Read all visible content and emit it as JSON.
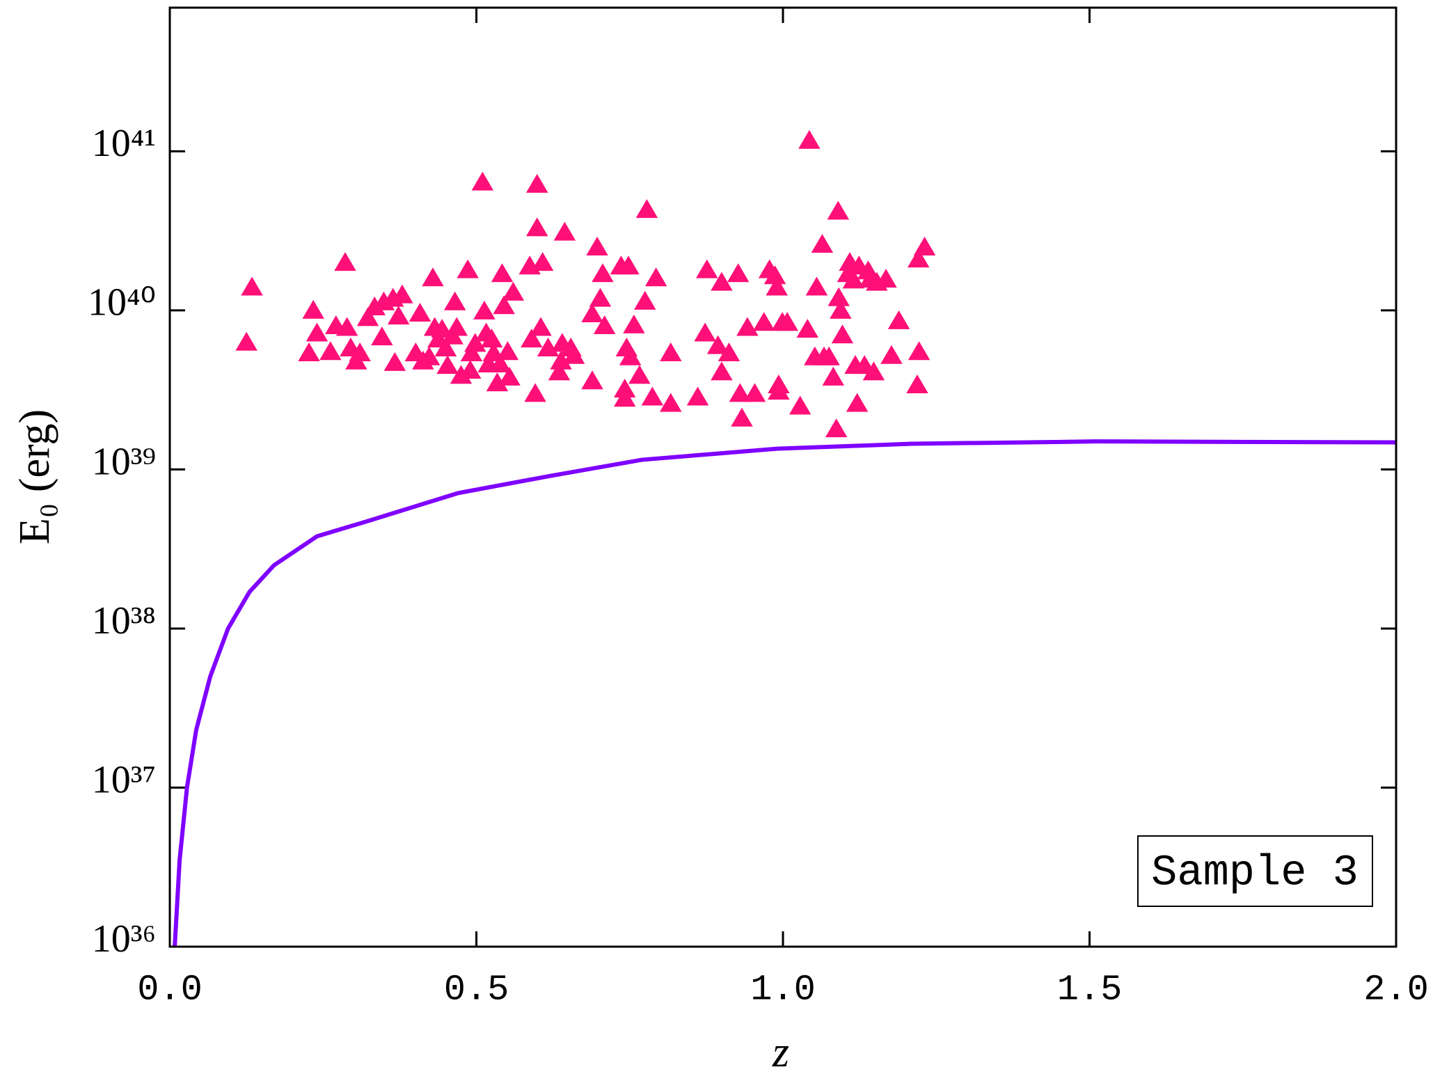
{
  "chart_data": {
    "type": "scatter",
    "xlabel": "z",
    "ylabel": "E₀ (erg)",
    "annotation": "Sample 3",
    "yscale": "log",
    "xlim": [
      0,
      2
    ],
    "ylim": [
      1e+36,
      8e+41
    ],
    "xticks": [
      {
        "value": 0,
        "label": "0.0"
      },
      0.5,
      {
        "value": 1,
        "label": "1.0"
      },
      1.5,
      {
        "value": 2,
        "label": "2.0"
      }
    ],
    "yticks": [
      {
        "value": 1e+36,
        "label": "10³⁶"
      },
      {
        "value": 1e+37,
        "label": "10³⁷"
      },
      {
        "value": 1e+38,
        "label": "10³⁸"
      },
      {
        "value": 1e+39,
        "label": "10³⁹"
      },
      {
        "value": 1e+40,
        "label": "10⁴⁰"
      },
      {
        "value": 1e+41,
        "label": "10⁴¹"
      }
    ],
    "series": [
      {
        "type": "scatter",
        "color": "#ff0f78",
        "x": [
          0.134,
          0.125,
          0.234,
          0.24,
          0.227,
          0.286,
          0.262,
          0.271,
          0.289,
          0.295,
          0.304,
          0.31,
          0.323,
          0.334,
          0.346,
          0.349,
          0.364,
          0.379,
          0.373,
          0.367,
          0.401,
          0.408,
          0.413,
          0.423,
          0.429,
          0.432,
          0.438,
          0.444,
          0.45,
          0.453,
          0.461,
          0.465,
          0.468,
          0.475,
          0.486,
          0.49,
          0.492,
          0.498,
          0.51,
          0.513,
          0.516,
          0.52,
          0.525,
          0.528,
          0.534,
          0.539,
          0.542,
          0.545,
          0.551,
          0.554,
          0.56,
          0.596,
          0.587,
          0.59,
          0.599,
          0.599,
          0.608,
          0.605,
          0.617,
          0.635,
          0.638,
          0.64,
          0.644,
          0.654,
          0.659,
          0.689,
          0.689,
          0.697,
          0.702,
          0.706,
          0.709,
          0.736,
          0.742,
          0.748,
          0.742,
          0.745,
          0.751,
          0.757,
          0.766,
          0.775,
          0.778,
          0.787,
          0.793,
          0.817,
          0.817,
          0.861,
          0.873,
          0.876,
          0.894,
          0.9,
          0.9,
          0.912,
          0.927,
          0.93,
          0.933,
          0.942,
          0.954,
          0.969,
          0.978,
          0.987,
          0.99,
          0.993,
          0.993,
          0.999,
          1.007,
          1.028,
          1.04,
          1.043,
          1.052,
          1.055,
          1.064,
          1.067,
          1.075,
          1.082,
          1.087,
          1.09,
          1.091,
          1.094,
          1.097,
          1.106,
          1.109,
          1.115,
          1.118,
          1.121,
          1.124,
          1.133,
          1.139,
          1.142,
          1.148,
          1.153,
          1.168,
          1.177,
          1.189,
          1.219,
          1.222,
          1.221,
          1.231
        ],
        "values": [
          1.4e+40,
          6.3e+39,
          1e+40,
          7.2e+39,
          5.4e+39,
          2e+40,
          5.5e+39,
          8e+39,
          7.8e+39,
          5.8e+39,
          4.8e+39,
          5.4e+39,
          9e+39,
          1.05e+40,
          6.8e+39,
          1.13e+40,
          1.19e+40,
          1.25e+40,
          9.2e+39,
          4.7e+39,
          5.4e+39,
          9.6e+39,
          4.8e+39,
          5.1e+39,
          1.6e+40,
          7.8e+39,
          6.6e+39,
          7.6e+39,
          5.8e+39,
          4.5e+39,
          6.9e+39,
          1.13e+40,
          7.8e+39,
          3.9e+39,
          1.8e+40,
          4.2e+39,
          5.4e+39,
          6.2e+39,
          6.4e+40,
          9.9e+39,
          7.2e+39,
          4.6e+39,
          6.6e+39,
          5.4e+39,
          3.5e+39,
          4.6e+39,
          1.7e+40,
          1.07e+40,
          5.5e+39,
          3.8e+39,
          1.3e+40,
          3e+39,
          1.9e+40,
          6.6e+39,
          6.2e+40,
          3.3e+40,
          2e+40,
          7.8e+39,
          5.8e+39,
          4.1e+39,
          4.8e+39,
          6.2e+39,
          3.1e+40,
          5.8e+39,
          5.2e+39,
          3.6e+39,
          9.5e+39,
          2.5e+40,
          1.19e+40,
          1.7e+40,
          8e+39,
          1.9e+40,
          3.2e+39,
          1.9e+40,
          2.8e+39,
          5.8e+39,
          5.1e+39,
          8.1e+39,
          3.9e+39,
          1.14e+40,
          4.3e+40,
          2.85e+39,
          1.6e+40,
          2.6e+39,
          5.4e+39,
          2.85e+39,
          7.2e+39,
          1.8e+40,
          6e+39,
          4.1e+39,
          1.5e+40,
          5.4e+39,
          1.7e+40,
          3e+39,
          2.1e+39,
          7.8e+39,
          3e+39,
          8.4e+39,
          1.8e+40,
          1.65e+40,
          1.4e+40,
          3.4e+39,
          3.1e+39,
          8.4e+39,
          8.4e+39,
          2.5e+39,
          7.6e+39,
          1.17e+41,
          5.1e+39,
          1.4e+40,
          2.6e+40,
          5.1e+39,
          5.1e+39,
          3.8e+39,
          1.8e+39,
          4.2e+40,
          1.2e+40,
          1e+40,
          7e+39,
          1.7e+40,
          2e+40,
          1.55e+40,
          4.5e+39,
          2.6e+39,
          1.9e+40,
          4.5e+39,
          1.77e+40,
          1.57e+40,
          4.1e+39,
          1.5e+40,
          1.57e+40,
          5.2e+39,
          8.6e+39,
          3.4e+39,
          5.5e+39,
          2.1e+40,
          2.5e+40
        ]
      },
      {
        "type": "line",
        "color": "#7f00ff",
        "x": [
          0.008,
          0.016,
          0.028,
          0.043,
          0.066,
          0.095,
          0.13,
          0.17,
          0.24,
          0.32,
          0.47,
          0.62,
          0.77,
          0.99,
          1.21,
          1.51,
          2.0
        ],
        "values": [
          1e+36,
          3.5e+36,
          1e+37,
          2.3e+37,
          5e+37,
          1e+38,
          1.7e+38,
          2.5e+38,
          3.8e+38,
          4.7e+38,
          7.1e+38,
          9.1e+38,
          1.15e+39,
          1.35e+39,
          1.45e+39,
          1.5e+39,
          1.48e+39
        ]
      }
    ]
  }
}
